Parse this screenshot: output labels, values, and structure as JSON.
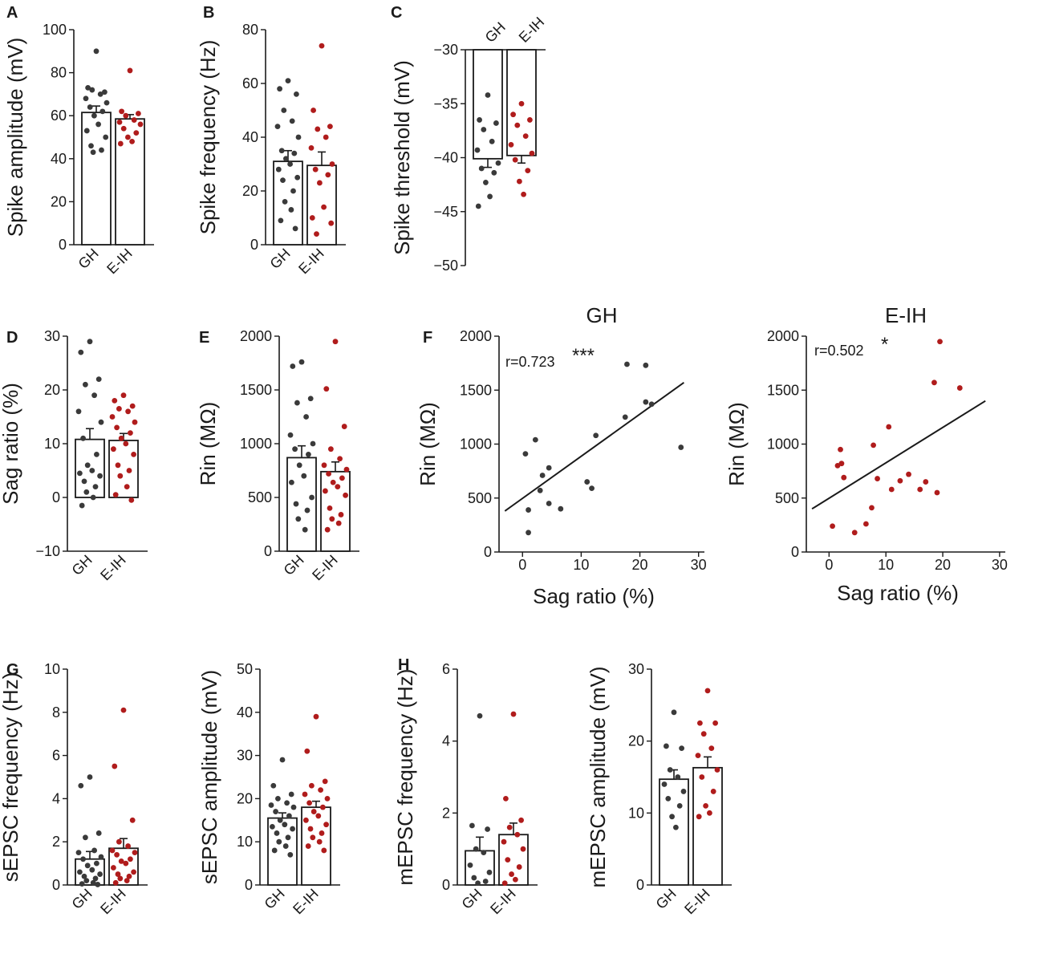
{
  "colors": {
    "gh": "#3a3a3a",
    "eih": "#b01c1c",
    "axis": "#1a1a1a"
  },
  "panel_labels": [
    "A",
    "B",
    "C",
    "D",
    "E",
    "F",
    "G",
    "H"
  ],
  "chart_data": [
    {
      "type": "bar",
      "panel": "A",
      "ylabel": "Spike amplitude (mV)",
      "categories": [
        "GH",
        "E-IH"
      ],
      "ylim": [
        0,
        100
      ],
      "yticks": [
        0,
        20,
        40,
        60,
        80,
        100
      ],
      "series": [
        {
          "name": "GH",
          "mean": 61.5,
          "sem": 3.0,
          "points": [
            90,
            73,
            71,
            72,
            70,
            68,
            66,
            64,
            62,
            60,
            56,
            53,
            50,
            46,
            44,
            43
          ]
        },
        {
          "name": "E-IH",
          "mean": 58.5,
          "sem": 2.0,
          "points": [
            81,
            62,
            61,
            60,
            58,
            57,
            56,
            54,
            52,
            50,
            48,
            47
          ]
        }
      ]
    },
    {
      "type": "bar",
      "panel": "B",
      "ylabel": "Spike frequency (Hz)",
      "categories": [
        "GH",
        "E-IH"
      ],
      "ylim": [
        0,
        80
      ],
      "yticks": [
        0,
        20,
        40,
        60,
        80
      ],
      "series": [
        {
          "name": "GH",
          "mean": 31,
          "sem": 4.0,
          "points": [
            61,
            58,
            56,
            50,
            46,
            44,
            40,
            35,
            34,
            32,
            30,
            28,
            25,
            24,
            20,
            16,
            13,
            9,
            6
          ]
        },
        {
          "name": "E-IH",
          "mean": 29.5,
          "sem": 5.0,
          "points": [
            74,
            50,
            44,
            43,
            40,
            36,
            30,
            28,
            26,
            23,
            14,
            10,
            8,
            4
          ]
        }
      ]
    },
    {
      "type": "bar",
      "panel": "C",
      "ylabel": "Spike threshold (mV)",
      "categories": [
        "GH",
        "E-IH"
      ],
      "ylim": [
        -50,
        -30
      ],
      "yticks": [
        -50,
        -45,
        -40,
        -35,
        -30
      ],
      "x_axis_position": "top",
      "series": [
        {
          "name": "GH",
          "mean": -40.1,
          "sem": 0.8,
          "points": [
            -34.2,
            -36.5,
            -36.8,
            -37.4,
            -38.5,
            -39.3,
            -40.5,
            -41.0,
            -41.4,
            -42.3,
            -43.6,
            -44.5
          ]
        },
        {
          "name": "E-IH",
          "mean": -39.8,
          "sem": 0.7,
          "points": [
            -35.0,
            -36.0,
            -36.5,
            -37.0,
            -38.0,
            -38.8,
            -39.6,
            -40.2,
            -41.2,
            -42.2,
            -43.4
          ]
        }
      ]
    },
    {
      "type": "bar",
      "panel": "D",
      "ylabel": "Sag ratio (%)",
      "categories": [
        "GH",
        "E-IH"
      ],
      "ylim": [
        -10,
        30
      ],
      "yticks": [
        -10,
        0,
        10,
        20,
        30
      ],
      "series": [
        {
          "name": "GH",
          "mean": 10.8,
          "sem": 2.0,
          "points": [
            29,
            27,
            22,
            21,
            19,
            16,
            14,
            11,
            8,
            6,
            5,
            4.5,
            4,
            3,
            2,
            1,
            0,
            -1.5
          ]
        },
        {
          "name": "E-IH",
          "mean": 10.6,
          "sem": 1.3,
          "points": [
            19,
            18,
            17,
            16.5,
            16,
            15,
            14,
            13,
            12,
            11,
            10,
            9,
            8,
            6,
            5,
            4,
            2,
            0.5,
            -0.5
          ]
        }
      ]
    },
    {
      "type": "bar",
      "panel": "E",
      "ylabel": "Rin (MΩ)",
      "categories": [
        "GH",
        "E-IH"
      ],
      "ylim": [
        0,
        2000
      ],
      "yticks": [
        0,
        500,
        1000,
        1500,
        2000
      ],
      "series": [
        {
          "name": "GH",
          "mean": 870,
          "sem": 110,
          "points": [
            1760,
            1720,
            1420,
            1380,
            1250,
            1080,
            1000,
            950,
            900,
            800,
            700,
            640,
            500,
            440,
            380,
            300,
            200
          ]
        },
        {
          "name": "E-IH",
          "mean": 740,
          "sem": 90,
          "points": [
            1950,
            1510,
            1160,
            950,
            860,
            800,
            760,
            720,
            680,
            640,
            600,
            560,
            520,
            400,
            340,
            300,
            260,
            200
          ]
        }
      ]
    },
    {
      "type": "scatter",
      "panel": "F",
      "title": "GH",
      "xlabel": "Sag ratio (%)",
      "ylabel": "Rin (MΩ)",
      "xlim": [
        -4,
        31
      ],
      "ylim": [
        0,
        2000
      ],
      "xticks": [
        0,
        10,
        20,
        30
      ],
      "yticks": [
        0,
        500,
        1000,
        1500,
        2000
      ],
      "annotation": "r=0.723",
      "significance": "***",
      "fit": {
        "x": [
          -3,
          27.5
        ],
        "y": [
          380,
          1570
        ]
      },
      "x": [
        0.5,
        1,
        1,
        2.2,
        3,
        3.4,
        4.5,
        4.5,
        6.5,
        11,
        11.8,
        12.5,
        17.5,
        17.8,
        21,
        21,
        22,
        27
      ],
      "y": [
        910,
        390,
        180,
        1040,
        570,
        710,
        780,
        450,
        400,
        650,
        590,
        1080,
        1250,
        1740,
        1730,
        1390,
        1370,
        970
      ]
    },
    {
      "type": "scatter",
      "panel": "F",
      "title": "E-IH",
      "xlabel": "Sag ratio (%)",
      "ylabel": "Rin (MΩ)",
      "xlim": [
        -4,
        31
      ],
      "ylim": [
        0,
        2000
      ],
      "xticks": [
        0,
        10,
        20,
        30
      ],
      "yticks": [
        0,
        500,
        1000,
        1500,
        2000
      ],
      "annotation": "r=0.502",
      "significance": "*",
      "fit": {
        "x": [
          -3,
          27.5
        ],
        "y": [
          400,
          1400
        ]
      },
      "x": [
        0.6,
        1.5,
        2,
        2.2,
        2.6,
        4.5,
        6.5,
        7.5,
        7.8,
        8.5,
        10.5,
        11,
        12.5,
        14,
        16,
        17,
        19,
        18.5,
        19.5,
        23
      ],
      "y": [
        240,
        800,
        950,
        820,
        690,
        180,
        260,
        410,
        990,
        680,
        1160,
        580,
        660,
        720,
        580,
        650,
        550,
        1570,
        1950,
        1520
      ]
    },
    {
      "type": "bar",
      "panel": "G",
      "ylabel": "sEPSC frequency (Hz)",
      "categories": [
        "GH",
        "E-IH"
      ],
      "ylim": [
        0,
        10
      ],
      "yticks": [
        0,
        2,
        4,
        6,
        8,
        10
      ],
      "series": [
        {
          "name": "GH",
          "mean": 1.2,
          "sem": 0.35,
          "points": [
            5.0,
            4.6,
            2.4,
            2.2,
            1.6,
            1.5,
            1.3,
            1.2,
            1.0,
            0.9,
            0.7,
            0.6,
            0.5,
            0.4,
            0.3,
            0.2,
            0.1,
            0.05,
            0.02
          ]
        },
        {
          "name": "E-IH",
          "mean": 1.7,
          "sem": 0.45,
          "points": [
            8.1,
            5.5,
            3.0,
            2.0,
            1.8,
            1.6,
            1.5,
            1.4,
            1.2,
            1.1,
            1.0,
            0.8,
            0.6,
            0.5,
            0.4,
            0.3,
            0.2,
            0.1
          ]
        }
      ]
    },
    {
      "type": "bar",
      "panel": "G",
      "ylabel": "sEPSC amplitude (mV)",
      "categories": [
        "GH",
        "E-IH"
      ],
      "ylim": [
        0,
        50
      ],
      "yticks": [
        0,
        10,
        20,
        30,
        40,
        50
      ],
      "series": [
        {
          "name": "GH",
          "mean": 15.5,
          "sem": 1.2,
          "points": [
            29,
            23,
            21,
            20,
            19,
            18.5,
            18,
            17,
            16,
            15,
            14,
            13.5,
            13,
            12,
            11,
            10,
            9,
            8,
            7
          ]
        },
        {
          "name": "E-IH",
          "mean": 18.0,
          "sem": 1.4,
          "points": [
            39,
            31,
            24,
            23,
            22,
            21,
            20,
            19,
            18,
            17,
            16,
            15,
            14,
            13,
            12,
            11,
            10,
            9,
            8
          ]
        }
      ]
    },
    {
      "type": "bar",
      "panel": "H",
      "ylabel": "mEPSC frequency (Hz)",
      "categories": [
        "GH",
        "E-IH"
      ],
      "ylim": [
        0,
        6
      ],
      "yticks": [
        0,
        2,
        4,
        6
      ],
      "series": [
        {
          "name": "GH",
          "mean": 0.95,
          "sem": 0.38,
          "points": [
            4.7,
            1.65,
            1.55,
            1.0,
            0.9,
            0.55,
            0.35,
            0.2,
            0.1,
            0.05
          ]
        },
        {
          "name": "E-IH",
          "mean": 1.4,
          "sem": 0.32,
          "points": [
            4.75,
            2.4,
            1.8,
            1.6,
            1.4,
            1.2,
            1.0,
            0.7,
            0.5,
            0.3,
            0.15,
            0.05
          ]
        }
      ]
    },
    {
      "type": "bar",
      "panel": "H",
      "ylabel": "mEPSC amplitude (mV)",
      "categories": [
        "GH",
        "E-IH"
      ],
      "ylim": [
        0,
        30
      ],
      "yticks": [
        0,
        10,
        20,
        30
      ],
      "series": [
        {
          "name": "GH",
          "mean": 14.7,
          "sem": 1.3,
          "points": [
            24,
            19.3,
            19,
            16,
            15,
            14,
            13,
            12,
            11,
            9.5,
            8
          ]
        },
        {
          "name": "E-IH",
          "mean": 16.3,
          "sem": 1.5,
          "points": [
            27,
            22.5,
            22.5,
            21,
            19,
            18,
            16,
            15,
            13,
            11,
            10,
            9.5
          ]
        }
      ]
    }
  ]
}
